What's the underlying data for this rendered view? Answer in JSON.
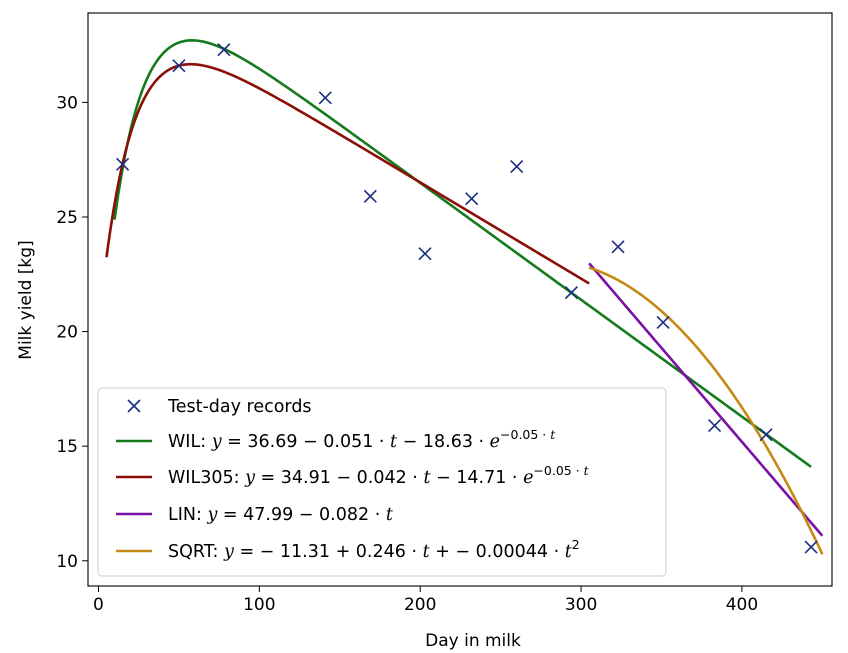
{
  "chart_data": {
    "type": "scatter",
    "title": "",
    "xlabel": "Day in milk",
    "ylabel": "Milk yield [kg]",
    "xlim": [
      -6.5,
      456
    ],
    "ylim": [
      8.9,
      33.9
    ],
    "xticks": [
      0,
      100,
      200,
      300,
      400
    ],
    "yticks": [
      10,
      15,
      20,
      25,
      30
    ],
    "grid": false,
    "legend_position": "lower-left",
    "points": {
      "name": "Test-day records",
      "color": "#1a2e80",
      "marker": "x",
      "x": [
        15,
        50,
        78,
        141,
        169,
        203,
        232,
        260,
        294,
        323,
        351,
        383,
        415,
        443
      ],
      "y": [
        27.3,
        31.6,
        32.3,
        30.2,
        25.9,
        23.4,
        25.8,
        27.2,
        21.7,
        23.7,
        20.4,
        15.9,
        15.5,
        10.6
      ]
    },
    "series": [
      {
        "name": "WIL",
        "label_parts": [
          {
            "t": "WIL: ",
            "it": false
          },
          {
            "t": "y",
            "it": true
          },
          {
            "t": " = 36.69 − 0.051 · ",
            "it": false
          },
          {
            "t": "t",
            "it": true
          },
          {
            "t": " − 18.63 · ",
            "it": false
          },
          {
            "t": "e",
            "it": true
          },
          {
            "t": "−0.05 · ",
            "it": false,
            "sup": true
          },
          {
            "t": "t",
            "it": true,
            "sup": true
          }
        ],
        "color": "#157a1c",
        "formula": "wil",
        "params": {
          "a": 36.69,
          "b": 0.051,
          "c": 18.63,
          "k": 0.05
        },
        "x_range": [
          10,
          443
        ]
      },
      {
        "name": "WIL305",
        "label_parts": [
          {
            "t": "WIL305: ",
            "it": false
          },
          {
            "t": "y",
            "it": true
          },
          {
            "t": " = 34.91 − 0.042 · ",
            "it": false
          },
          {
            "t": "t",
            "it": true
          },
          {
            "t": " − 14.71 · ",
            "it": false
          },
          {
            "t": "e",
            "it": true
          },
          {
            "t": "−0.05 · ",
            "it": false,
            "sup": true
          },
          {
            "t": "t",
            "it": true,
            "sup": true
          }
        ],
        "color": "#8b0f06",
        "formula": "wil",
        "params": {
          "a": 34.91,
          "b": 0.042,
          "c": 14.71,
          "k": 0.05
        },
        "x_range": [
          5,
          305
        ]
      },
      {
        "name": "LIN",
        "label_parts": [
          {
            "t": "LIN: ",
            "it": false
          },
          {
            "t": "y",
            "it": true
          },
          {
            "t": " = 47.99 − 0.082 · ",
            "it": false
          },
          {
            "t": "t",
            "it": true
          }
        ],
        "color": "#7a10a6",
        "formula": "linear",
        "params": {
          "a": 47.99,
          "b": 0.082
        },
        "x_range": [
          305,
          450
        ]
      },
      {
        "name": "SQRT",
        "label_parts": [
          {
            "t": "SQRT: ",
            "it": false
          },
          {
            "t": "y",
            "it": true
          },
          {
            "t": " = − 11.31 + 0.246 · ",
            "it": false
          },
          {
            "t": "t",
            "it": true
          },
          {
            "t": " + − 0.00044 · ",
            "it": false
          },
          {
            "t": "t",
            "it": true
          },
          {
            "t": "2",
            "it": false,
            "sup": true
          }
        ],
        "color": "#c48a14",
        "formula": "quadratic",
        "params": {
          "a": -11.31,
          "b": 0.246,
          "c": -0.00044
        },
        "x_range": [
          305,
          450
        ]
      }
    ]
  }
}
